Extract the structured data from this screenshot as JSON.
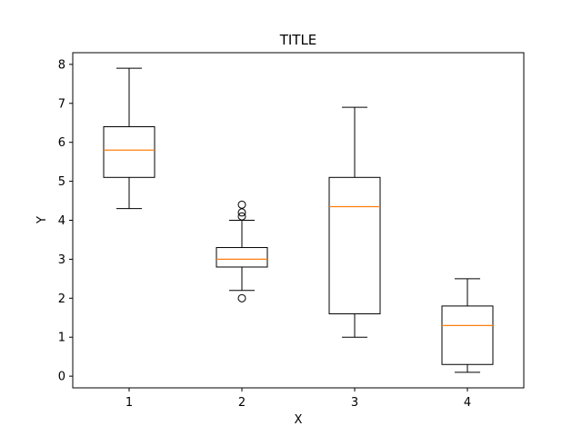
{
  "chart_data": {
    "type": "box",
    "title": "TITLE",
    "xlabel": "X",
    "ylabel": "Y",
    "categories": [
      "1",
      "2",
      "3",
      "4"
    ],
    "ylim": [
      -0.3,
      8.3
    ],
    "yticks": [
      0,
      1,
      2,
      3,
      4,
      5,
      6,
      7,
      8
    ],
    "grid": false,
    "boxes": [
      {
        "category": "1",
        "whisker_low": 4.3,
        "q1": 5.1,
        "median": 5.8,
        "q3": 6.4,
        "whisker_high": 7.9,
        "outliers": []
      },
      {
        "category": "2",
        "whisker_low": 2.2,
        "q1": 2.8,
        "median": 3.0,
        "q3": 3.3,
        "whisker_high": 4.0,
        "outliers": [
          2.0,
          4.1,
          4.2,
          4.4
        ]
      },
      {
        "category": "3",
        "whisker_low": 1.0,
        "q1": 1.6,
        "median": 4.35,
        "q3": 5.1,
        "whisker_high": 6.9,
        "outliers": []
      },
      {
        "category": "4",
        "whisker_low": 0.1,
        "q1": 0.3,
        "median": 1.3,
        "q3": 1.8,
        "whisker_high": 2.5,
        "outliers": []
      }
    ],
    "colors": {
      "box": "#000000",
      "median": "#ff7f0e",
      "background": "#ffffff"
    }
  }
}
